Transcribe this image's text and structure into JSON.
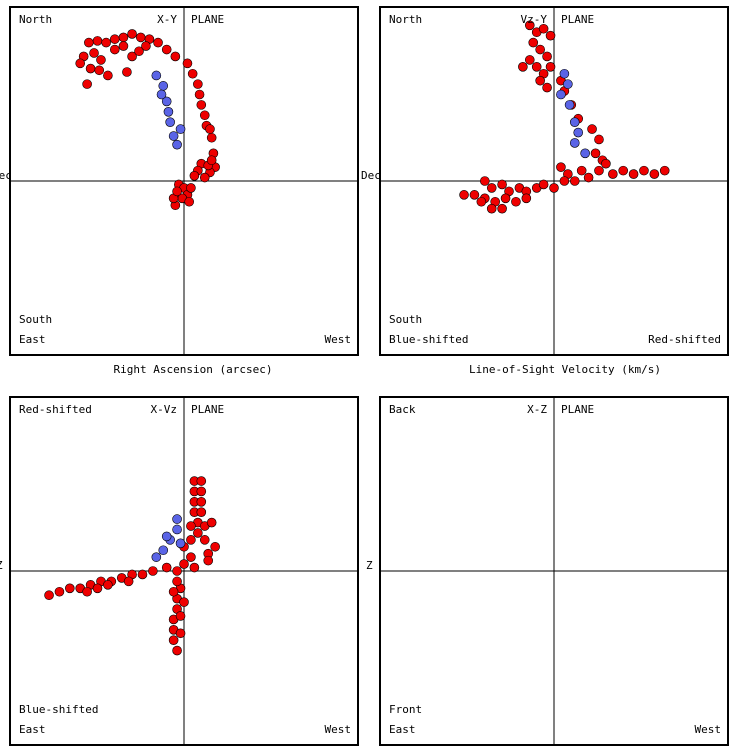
{
  "chart_data": [
    {
      "type": "scatter",
      "title": "X-Y",
      "plane_label": "PLANE",
      "corner_labels": {
        "top_left": "North",
        "bottom_left_upper": "South",
        "bottom_left": "East",
        "bottom_right": "West"
      },
      "xlabel": "Right Ascension (arcsec)",
      "ylabel": "Dec",
      "xlim": [
        -10,
        10
      ],
      "ylim": [
        -10,
        10
      ],
      "series": [
        {
          "color": "#ee0000",
          "points": [
            [
              -5.5,
              8.0
            ],
            [
              -5.0,
              8.1
            ],
            [
              -4.5,
              8.0
            ],
            [
              -4.0,
              8.2
            ],
            [
              -3.5,
              8.3
            ],
            [
              -3.0,
              8.5
            ],
            [
              -2.5,
              8.3
            ],
            [
              -2.0,
              8.2
            ],
            [
              -1.5,
              8.0
            ],
            [
              -1.0,
              7.6
            ],
            [
              -0.5,
              7.2
            ],
            [
              -5.8,
              7.2
            ],
            [
              -5.2,
              7.4
            ],
            [
              -4.8,
              7.0
            ],
            [
              -4.0,
              7.6
            ],
            [
              -3.5,
              7.8
            ],
            [
              -3.0,
              7.2
            ],
            [
              -2.6,
              7.5
            ],
            [
              -2.2,
              7.8
            ],
            [
              -5.4,
              6.5
            ],
            [
              -4.9,
              6.4
            ],
            [
              -4.4,
              6.1
            ],
            [
              -3.3,
              6.3
            ],
            [
              -6.0,
              6.8
            ],
            [
              -5.6,
              5.6
            ],
            [
              0.2,
              6.8
            ],
            [
              0.5,
              6.2
            ],
            [
              0.8,
              5.6
            ],
            [
              0.9,
              5.0
            ],
            [
              1.0,
              4.4
            ],
            [
              1.2,
              3.8
            ],
            [
              1.3,
              3.2
            ],
            [
              1.5,
              3.0
            ],
            [
              1.6,
              2.5
            ],
            [
              1.7,
              1.6
            ],
            [
              1.8,
              0.8
            ],
            [
              1.5,
              0.5
            ],
            [
              1.2,
              0.2
            ],
            [
              1.0,
              1.0
            ],
            [
              0.8,
              0.6
            ],
            [
              1.4,
              0.9
            ],
            [
              1.6,
              1.2
            ],
            [
              -0.3,
              -0.2
            ],
            [
              0.0,
              -0.4
            ],
            [
              0.2,
              -0.8
            ],
            [
              -0.1,
              -1.0
            ],
            [
              0.3,
              -1.2
            ],
            [
              -0.5,
              -1.4
            ],
            [
              -0.6,
              -1.0
            ],
            [
              -0.4,
              -0.6
            ],
            [
              0.4,
              -0.4
            ],
            [
              0.6,
              0.3
            ]
          ]
        },
        {
          "color": "#5a64e6",
          "points": [
            [
              -1.6,
              6.1
            ],
            [
              -1.2,
              5.5
            ],
            [
              -1.0,
              4.6
            ],
            [
              -0.8,
              3.4
            ],
            [
              -0.6,
              2.6
            ],
            [
              -0.4,
              2.1
            ],
            [
              -0.9,
              4.0
            ],
            [
              -1.3,
              5.0
            ],
            [
              -0.2,
              3.0
            ]
          ]
        }
      ]
    },
    {
      "type": "scatter",
      "title": "Vz-Y",
      "plane_label": "PLANE",
      "corner_labels": {
        "top_left": "North",
        "bottom_left_upper": "South",
        "bottom_left": "Blue-shifted",
        "bottom_right": "Red-shifted"
      },
      "xlabel": "Line-of-Sight Velocity (km/s)",
      "ylabel": "Dec",
      "xlim": [
        -10,
        10
      ],
      "ylim": [
        -10,
        10
      ],
      "series": [
        {
          "color": "#ee0000",
          "points": [
            [
              -1.4,
              9.0
            ],
            [
              -1.0,
              8.6
            ],
            [
              -0.6,
              8.8
            ],
            [
              -0.2,
              8.4
            ],
            [
              -1.2,
              8.0
            ],
            [
              -0.8,
              7.6
            ],
            [
              -0.4,
              7.2
            ],
            [
              -1.4,
              7.0
            ],
            [
              -1.0,
              6.6
            ],
            [
              -0.6,
              6.2
            ],
            [
              -1.8,
              6.6
            ],
            [
              -0.2,
              6.6
            ],
            [
              -0.8,
              5.8
            ],
            [
              -0.4,
              5.4
            ],
            [
              0.4,
              5.8
            ],
            [
              0.6,
              5.2
            ],
            [
              1.0,
              4.4
            ],
            [
              1.4,
              3.6
            ],
            [
              2.2,
              3.0
            ],
            [
              2.6,
              2.4
            ],
            [
              2.4,
              1.6
            ],
            [
              2.8,
              1.2
            ],
            [
              3.0,
              1.0
            ],
            [
              0.4,
              0.8
            ],
            [
              0.8,
              0.4
            ],
            [
              1.6,
              0.6
            ],
            [
              2.0,
              0.2
            ],
            [
              2.6,
              0.6
            ],
            [
              3.4,
              0.4
            ],
            [
              4.0,
              0.6
            ],
            [
              4.6,
              0.4
            ],
            [
              5.2,
              0.6
            ],
            [
              5.8,
              0.4
            ],
            [
              6.4,
              0.6
            ],
            [
              -4.0,
              0.0
            ],
            [
              -3.6,
              -0.4
            ],
            [
              -3.0,
              -0.2
            ],
            [
              -2.6,
              -0.6
            ],
            [
              -2.0,
              -0.4
            ],
            [
              -1.6,
              -0.6
            ],
            [
              -1.0,
              -0.4
            ],
            [
              -0.6,
              -0.2
            ],
            [
              0.0,
              -0.4
            ],
            [
              0.6,
              0.0
            ],
            [
              1.2,
              0.0
            ],
            [
              -4.6,
              -0.8
            ],
            [
              -4.0,
              -1.0
            ],
            [
              -3.4,
              -1.2
            ],
            [
              -2.8,
              -1.0
            ],
            [
              -2.2,
              -1.2
            ],
            [
              -1.6,
              -1.0
            ],
            [
              -3.0,
              -1.6
            ],
            [
              -3.6,
              -1.6
            ],
            [
              -4.2,
              -1.2
            ],
            [
              -5.2,
              -0.8
            ]
          ]
        },
        {
          "color": "#5a64e6",
          "points": [
            [
              0.6,
              6.2
            ],
            [
              0.8,
              5.6
            ],
            [
              0.4,
              5.0
            ],
            [
              0.9,
              4.4
            ],
            [
              1.2,
              3.4
            ],
            [
              1.4,
              2.8
            ],
            [
              1.2,
              2.2
            ],
            [
              1.8,
              1.6
            ]
          ]
        }
      ]
    },
    {
      "type": "scatter",
      "title": "X-Vz",
      "plane_label": "PLANE",
      "corner_labels": {
        "top_left": "Red-shifted",
        "bottom_left_upper": "Blue-shifted",
        "bottom_left": "East",
        "bottom_right": "West"
      },
      "ylabel": "Z",
      "xlim": [
        -10,
        10
      ],
      "ylim": [
        -10,
        10
      ],
      "series": [
        {
          "color": "#ee0000",
          "points": [
            [
              0.6,
              5.2
            ],
            [
              1.0,
              5.2
            ],
            [
              0.6,
              4.6
            ],
            [
              1.0,
              4.6
            ],
            [
              0.6,
              4.0
            ],
            [
              1.0,
              4.0
            ],
            [
              0.6,
              3.4
            ],
            [
              1.0,
              3.4
            ],
            [
              0.8,
              2.8
            ],
            [
              0.4,
              2.6
            ],
            [
              1.2,
              2.6
            ],
            [
              0.8,
              2.2
            ],
            [
              1.2,
              1.8
            ],
            [
              0.4,
              1.8
            ],
            [
              0.0,
              1.4
            ],
            [
              1.6,
              2.8
            ],
            [
              1.8,
              1.4
            ],
            [
              1.4,
              1.0
            ],
            [
              0.4,
              0.8
            ],
            [
              0.0,
              0.4
            ],
            [
              -0.4,
              0.0
            ],
            [
              0.6,
              0.2
            ],
            [
              1.4,
              0.6
            ],
            [
              -1.0,
              0.2
            ],
            [
              -1.8,
              0.0
            ],
            [
              -2.4,
              -0.2
            ],
            [
              -3.0,
              -0.2
            ],
            [
              -3.6,
              -0.4
            ],
            [
              -4.2,
              -0.6
            ],
            [
              -4.8,
              -0.6
            ],
            [
              -5.4,
              -0.8
            ],
            [
              -6.0,
              -1.0
            ],
            [
              -6.6,
              -1.0
            ],
            [
              -7.2,
              -1.2
            ],
            [
              -7.8,
              -1.4
            ],
            [
              -5.6,
              -1.2
            ],
            [
              -5.0,
              -1.0
            ],
            [
              -4.4,
              -0.8
            ],
            [
              -3.2,
              -0.6
            ],
            [
              -0.2,
              -1.0
            ],
            [
              -0.4,
              -1.6
            ],
            [
              -0.4,
              -2.2
            ],
            [
              -0.6,
              -2.8
            ],
            [
              -0.6,
              -3.4
            ],
            [
              -0.6,
              -4.0
            ],
            [
              -0.4,
              -4.6
            ],
            [
              -0.2,
              -3.6
            ],
            [
              -0.2,
              -2.6
            ],
            [
              0.0,
              -1.8
            ],
            [
              -0.4,
              -0.6
            ],
            [
              -0.6,
              -1.2
            ]
          ]
        },
        {
          "color": "#5a64e6",
          "points": [
            [
              -0.4,
              3.0
            ],
            [
              -0.4,
              2.4
            ],
            [
              -0.8,
              1.8
            ],
            [
              -1.2,
              1.2
            ],
            [
              -1.6,
              0.8
            ],
            [
              -0.2,
              1.6
            ],
            [
              -1.0,
              2.0
            ]
          ]
        }
      ]
    },
    {
      "type": "scatter",
      "title": "X-Z",
      "plane_label": "PLANE",
      "corner_labels": {
        "top_left": "Back",
        "bottom_left_upper": "Front",
        "bottom_left": "East",
        "bottom_right": "West"
      },
      "ylabel": "Z",
      "xlim": [
        -10,
        10
      ],
      "ylim": [
        -10,
        10
      ],
      "series": []
    }
  ]
}
